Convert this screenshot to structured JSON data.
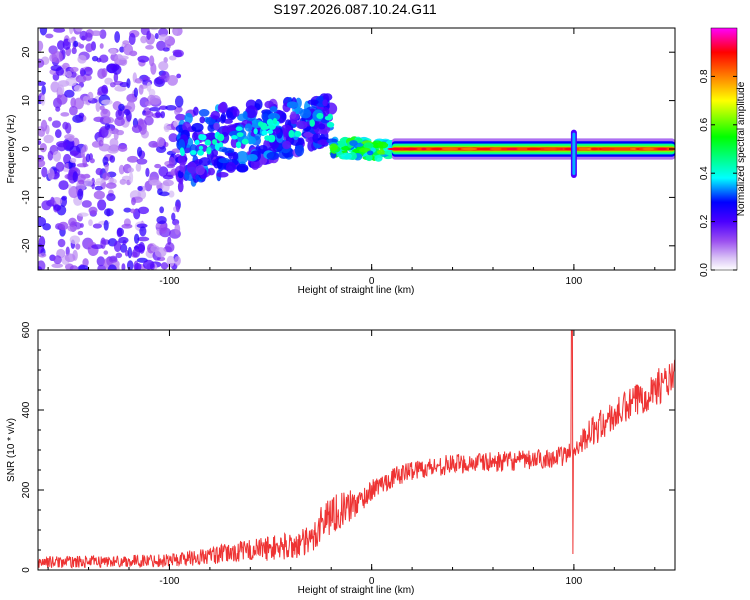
{
  "title": "S197.2026.087.10.24.G11",
  "chart_data": [
    {
      "type": "heatmap",
      "name": "spectrogram",
      "xlabel": "Height of straight line (km)",
      "ylabel": "Frequency (Hz)",
      "xlim": [
        -165,
        150
      ],
      "ylim": [
        -25,
        25
      ],
      "x_ticks": [
        -100,
        0,
        100
      ],
      "y_ticks": [
        -20,
        -10,
        0,
        10,
        20
      ],
      "colorbar": {
        "label": "Normalized spectral amplitude",
        "range": [
          0.0,
          1.0
        ],
        "ticks": [
          0.0,
          0.2,
          0.4,
          0.6,
          0.8
        ],
        "tick_labels": [
          "0.0",
          "0.2",
          "0.4",
          "0.6",
          "0.8"
        ],
        "colormap": [
          "#ffffff",
          "#d9c2f5",
          "#9b4ff0",
          "#4b00ff",
          "#0000ff",
          "#00ffff",
          "#00ff00",
          "#ffff00",
          "#ff8000",
          "#ff0000",
          "#ff00ff"
        ]
      },
      "regions": [
        {
          "x_range": [
            -165,
            -95
          ],
          "description": "noise",
          "amplitude": [
            0.05,
            0.25
          ],
          "freq_spread": 25
        },
        {
          "x_range": [
            -95,
            -20
          ],
          "description": "rising scatter",
          "amplitude": [
            0.15,
            0.35
          ],
          "center_freq": [
            0,
            6
          ],
          "freq_spread": 8
        },
        {
          "x_range": [
            -20,
            10
          ],
          "description": "transition",
          "amplitude": [
            0.3,
            0.6
          ],
          "center_freq": 0,
          "freq_spread": 2
        },
        {
          "x_range": [
            10,
            150
          ],
          "description": "steady tone",
          "amplitude": [
            0.5,
            0.95
          ],
          "center_freq": 0,
          "freq_spread": 1
        }
      ],
      "features": [
        {
          "x": 100,
          "freq_range": [
            -6,
            4
          ],
          "description": "vertical streak"
        }
      ]
    },
    {
      "type": "line",
      "name": "snr",
      "xlabel": "Height of straight line (km)",
      "ylabel": "SNR (10 * v/v)",
      "xlim": [
        -165,
        150
      ],
      "ylim": [
        0,
        600
      ],
      "x_ticks": [
        -100,
        0,
        100
      ],
      "y_ticks": [
        0,
        200,
        400,
        600
      ],
      "color": "#ee3333",
      "series": [
        {
          "name": "SNR",
          "x": [
            -165,
            -150,
            -120,
            -100,
            -80,
            -60,
            -40,
            -30,
            -25,
            -20,
            -15,
            -10,
            -5,
            0,
            10,
            20,
            40,
            60,
            80,
            95,
            100,
            105,
            110,
            120,
            130,
            140,
            150
          ],
          "y": [
            20,
            20,
            22,
            25,
            35,
            50,
            60,
            70,
            120,
            140,
            150,
            160,
            175,
            200,
            230,
            250,
            265,
            270,
            275,
            285,
            300,
            330,
            350,
            385,
            420,
            455,
            480
          ],
          "noise_amplitude": [
            15,
            15,
            15,
            18,
            22,
            28,
            35,
            40,
            50,
            50,
            45,
            40,
            30,
            25,
            25,
            25,
            25,
            25,
            25,
            25,
            25,
            30,
            40,
            40,
            45,
            45,
            45
          ]
        }
      ],
      "spikes": [
        {
          "x": 99,
          "y_min": 40,
          "y_max": 600
        }
      ]
    }
  ]
}
